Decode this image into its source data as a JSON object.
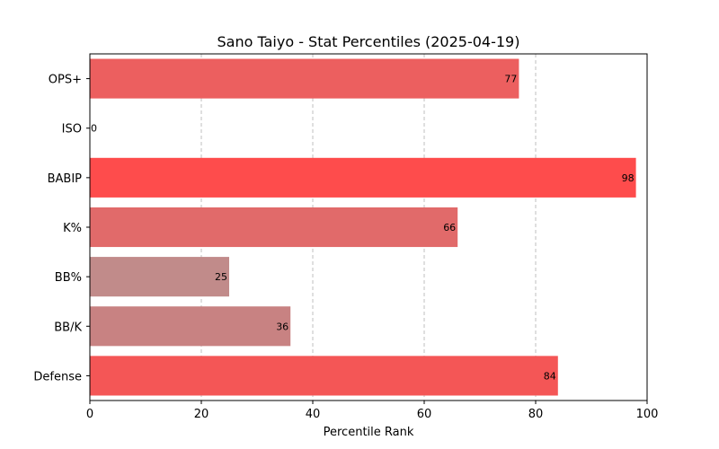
{
  "chart_data": {
    "type": "bar",
    "orientation": "horizontal",
    "title": "Sano Taiyo - Stat Percentiles (2025-04-19)",
    "xlabel": "Percentile Rank",
    "ylabel": "",
    "xlim": [
      0,
      100
    ],
    "x_ticks": [
      0,
      20,
      40,
      60,
      80,
      100
    ],
    "grid": "x-dashed",
    "categories": [
      "OPS+",
      "ISO",
      "BABIP",
      "K%",
      "BB%",
      "BB/K",
      "Defense"
    ],
    "values": [
      77,
      0,
      98,
      66,
      25,
      36,
      84
    ],
    "bar_colors": [
      "#ec5f5f",
      "#c09090",
      "#fe4c4c",
      "#e16a6a",
      "#c18b8a",
      "#c88282",
      "#f45656"
    ],
    "data_labels": [
      "77",
      "0",
      "98",
      "66",
      "25",
      "36",
      "84"
    ]
  }
}
